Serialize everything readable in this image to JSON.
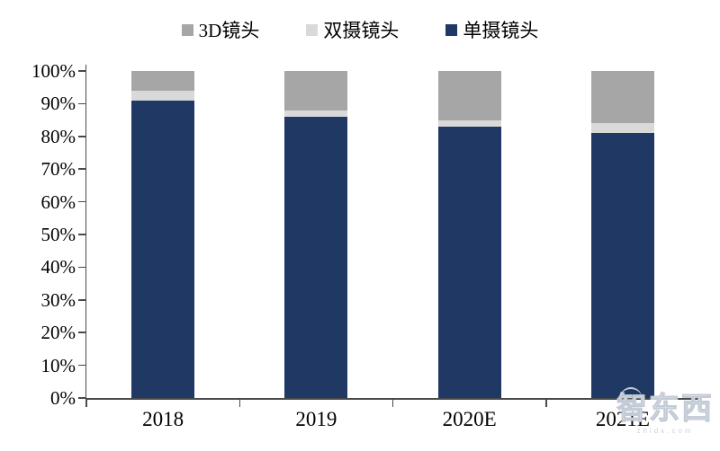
{
  "legend": {
    "position": "top",
    "items": [
      {
        "label": "3D镜头",
        "color": "#A6A6A6"
      },
      {
        "label": "双摄镜头",
        "color": "#D9D9D9"
      },
      {
        "label": "单摄镜头",
        "color": "#1F3864"
      }
    ]
  },
  "chart_data": {
    "type": "bar",
    "stacked": true,
    "title": "",
    "xlabel": "",
    "ylabel": "",
    "categories": [
      "2018",
      "2019",
      "2020E",
      "2021E"
    ],
    "series": [
      {
        "name": "单摄镜头",
        "color": "#1F3864",
        "values": [
          91,
          86,
          83,
          81
        ]
      },
      {
        "name": "双摄镜头",
        "color": "#D9D9D9",
        "values": [
          3,
          2,
          2,
          3
        ]
      },
      {
        "name": "3D镜头",
        "color": "#A6A6A6",
        "values": [
          6,
          12,
          15,
          16
        ]
      }
    ],
    "value_unit": "%",
    "ylim": [
      0,
      100
    ],
    "yticks": [
      "0%",
      "10%",
      "20%",
      "30%",
      "40%",
      "50%",
      "60%",
      "70%",
      "80%",
      "90%",
      "100%"
    ],
    "grid": false,
    "legend_position": "top",
    "axis_color": "#4a4a4a"
  },
  "watermark": {
    "text": "智东西",
    "subtext": "zhidx.com"
  }
}
